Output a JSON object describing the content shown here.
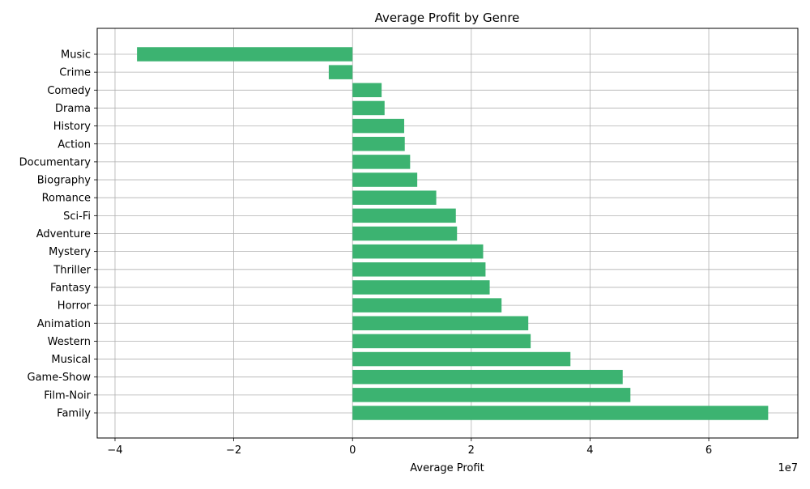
{
  "chart_data": {
    "type": "bar",
    "orientation": "horizontal",
    "title": "Average Profit by Genre",
    "xlabel": "Average Profit",
    "ylabel": "",
    "x_offset_label": "1e7",
    "xlim": [
      -43000000.0,
      75000000.0
    ],
    "xticks": [
      -40000000.0,
      -20000000.0,
      0,
      20000000.0,
      40000000.0,
      60000000.0
    ],
    "xtick_labels": [
      "−4",
      "−2",
      "0",
      "2",
      "4",
      "6"
    ],
    "grid": true,
    "bar_color": "#3cb371",
    "categories": [
      "Music",
      "Crime",
      "Comedy",
      "Drama",
      "History",
      "Action",
      "Documentary",
      "Biography",
      "Romance",
      "Sci-Fi",
      "Adventure",
      "Mystery",
      "Thriller",
      "Fantasy",
      "Horror",
      "Animation",
      "Western",
      "Musical",
      "Game-Show",
      "Film-Noir",
      "Family"
    ],
    "values": [
      -36300000,
      -4000000,
      4900000,
      5400000,
      8700000,
      8800000,
      9700000,
      10900000,
      14100000,
      17400000,
      17600000,
      22000000,
      22400000,
      23100000,
      25100000,
      29600000,
      30000000,
      36700000,
      45500000,
      46800000,
      70000000
    ]
  }
}
